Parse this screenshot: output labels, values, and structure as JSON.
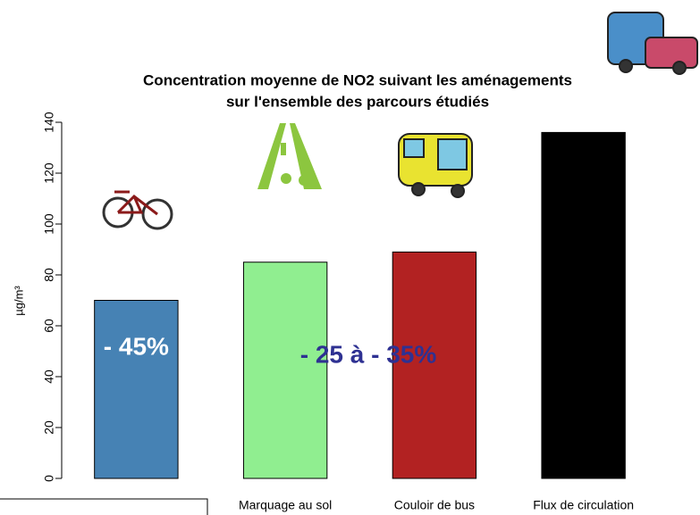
{
  "chart_data": {
    "type": "bar",
    "title": [
      "Concentration moyenne de NO2 suivant les aménagements",
      "sur l'ensemble des parcours étudiés"
    ],
    "y_label": "µg/m³",
    "categories": [
      null,
      "Marquage au sol",
      "Couloir de bus",
      "Flux de circulation"
    ],
    "values": [
      70,
      85,
      89,
      136
    ],
    "colors": [
      "#4682b4",
      "#90ee90",
      "#b22222",
      "#000000"
    ],
    "ylim": [
      0,
      140
    ],
    "yticks": [
      0,
      20,
      40,
      60,
      80,
      100,
      120,
      140
    ],
    "annotations": [
      {
        "text": "- 45%",
        "color": "#ffffff"
      },
      {
        "text": "- 25 à - 35%",
        "color": "#2e3192"
      }
    ]
  }
}
